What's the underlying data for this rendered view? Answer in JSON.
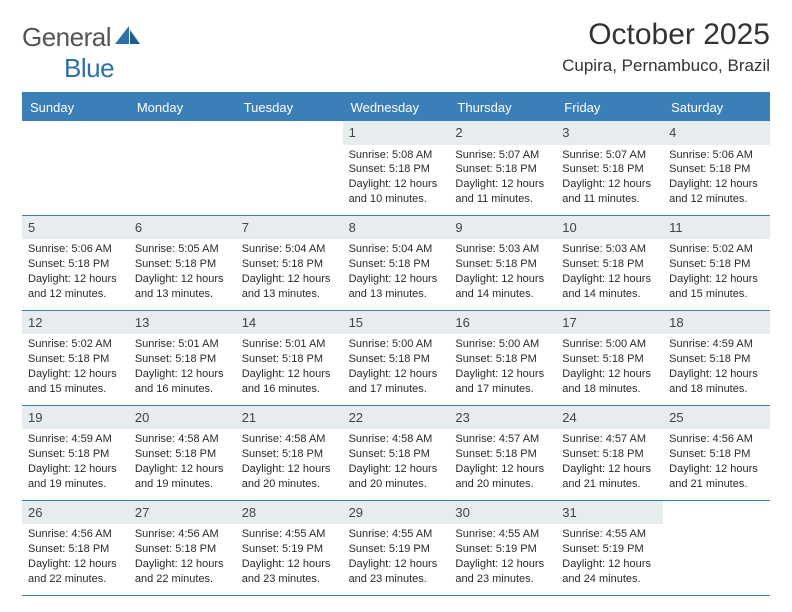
{
  "brand": {
    "name_part1": "General",
    "name_part2": "Blue"
  },
  "title": "October 2025",
  "location": "Cupira, Pernambuco, Brazil",
  "colors": {
    "header_bar": "#3b7fb8",
    "daynum_bg": "#e7ecef",
    "text": "#2a2a2a",
    "logo_gray": "#555",
    "logo_blue": "#2f6fa8"
  },
  "layout": {
    "cols": 7,
    "rows": 5,
    "font_family": "Arial"
  },
  "weekdays": [
    "Sunday",
    "Monday",
    "Tuesday",
    "Wednesday",
    "Thursday",
    "Friday",
    "Saturday"
  ],
  "weeks": [
    [
      {
        "day": "",
        "sunrise": "",
        "sunset": "",
        "daylight": ""
      },
      {
        "day": "",
        "sunrise": "",
        "sunset": "",
        "daylight": ""
      },
      {
        "day": "",
        "sunrise": "",
        "sunset": "",
        "daylight": ""
      },
      {
        "day": "1",
        "sunrise": "Sunrise: 5:08 AM",
        "sunset": "Sunset: 5:18 PM",
        "daylight": "Daylight: 12 hours and 10 minutes."
      },
      {
        "day": "2",
        "sunrise": "Sunrise: 5:07 AM",
        "sunset": "Sunset: 5:18 PM",
        "daylight": "Daylight: 12 hours and 11 minutes."
      },
      {
        "day": "3",
        "sunrise": "Sunrise: 5:07 AM",
        "sunset": "Sunset: 5:18 PM",
        "daylight": "Daylight: 12 hours and 11 minutes."
      },
      {
        "day": "4",
        "sunrise": "Sunrise: 5:06 AM",
        "sunset": "Sunset: 5:18 PM",
        "daylight": "Daylight: 12 hours and 12 minutes."
      }
    ],
    [
      {
        "day": "5",
        "sunrise": "Sunrise: 5:06 AM",
        "sunset": "Sunset: 5:18 PM",
        "daylight": "Daylight: 12 hours and 12 minutes."
      },
      {
        "day": "6",
        "sunrise": "Sunrise: 5:05 AM",
        "sunset": "Sunset: 5:18 PM",
        "daylight": "Daylight: 12 hours and 13 minutes."
      },
      {
        "day": "7",
        "sunrise": "Sunrise: 5:04 AM",
        "sunset": "Sunset: 5:18 PM",
        "daylight": "Daylight: 12 hours and 13 minutes."
      },
      {
        "day": "8",
        "sunrise": "Sunrise: 5:04 AM",
        "sunset": "Sunset: 5:18 PM",
        "daylight": "Daylight: 12 hours and 13 minutes."
      },
      {
        "day": "9",
        "sunrise": "Sunrise: 5:03 AM",
        "sunset": "Sunset: 5:18 PM",
        "daylight": "Daylight: 12 hours and 14 minutes."
      },
      {
        "day": "10",
        "sunrise": "Sunrise: 5:03 AM",
        "sunset": "Sunset: 5:18 PM",
        "daylight": "Daylight: 12 hours and 14 minutes."
      },
      {
        "day": "11",
        "sunrise": "Sunrise: 5:02 AM",
        "sunset": "Sunset: 5:18 PM",
        "daylight": "Daylight: 12 hours and 15 minutes."
      }
    ],
    [
      {
        "day": "12",
        "sunrise": "Sunrise: 5:02 AM",
        "sunset": "Sunset: 5:18 PM",
        "daylight": "Daylight: 12 hours and 15 minutes."
      },
      {
        "day": "13",
        "sunrise": "Sunrise: 5:01 AM",
        "sunset": "Sunset: 5:18 PM",
        "daylight": "Daylight: 12 hours and 16 minutes."
      },
      {
        "day": "14",
        "sunrise": "Sunrise: 5:01 AM",
        "sunset": "Sunset: 5:18 PM",
        "daylight": "Daylight: 12 hours and 16 minutes."
      },
      {
        "day": "15",
        "sunrise": "Sunrise: 5:00 AM",
        "sunset": "Sunset: 5:18 PM",
        "daylight": "Daylight: 12 hours and 17 minutes."
      },
      {
        "day": "16",
        "sunrise": "Sunrise: 5:00 AM",
        "sunset": "Sunset: 5:18 PM",
        "daylight": "Daylight: 12 hours and 17 minutes."
      },
      {
        "day": "17",
        "sunrise": "Sunrise: 5:00 AM",
        "sunset": "Sunset: 5:18 PM",
        "daylight": "Daylight: 12 hours and 18 minutes."
      },
      {
        "day": "18",
        "sunrise": "Sunrise: 4:59 AM",
        "sunset": "Sunset: 5:18 PM",
        "daylight": "Daylight: 12 hours and 18 minutes."
      }
    ],
    [
      {
        "day": "19",
        "sunrise": "Sunrise: 4:59 AM",
        "sunset": "Sunset: 5:18 PM",
        "daylight": "Daylight: 12 hours and 19 minutes."
      },
      {
        "day": "20",
        "sunrise": "Sunrise: 4:58 AM",
        "sunset": "Sunset: 5:18 PM",
        "daylight": "Daylight: 12 hours and 19 minutes."
      },
      {
        "day": "21",
        "sunrise": "Sunrise: 4:58 AM",
        "sunset": "Sunset: 5:18 PM",
        "daylight": "Daylight: 12 hours and 20 minutes."
      },
      {
        "day": "22",
        "sunrise": "Sunrise: 4:58 AM",
        "sunset": "Sunset: 5:18 PM",
        "daylight": "Daylight: 12 hours and 20 minutes."
      },
      {
        "day": "23",
        "sunrise": "Sunrise: 4:57 AM",
        "sunset": "Sunset: 5:18 PM",
        "daylight": "Daylight: 12 hours and 20 minutes."
      },
      {
        "day": "24",
        "sunrise": "Sunrise: 4:57 AM",
        "sunset": "Sunset: 5:18 PM",
        "daylight": "Daylight: 12 hours and 21 minutes."
      },
      {
        "day": "25",
        "sunrise": "Sunrise: 4:56 AM",
        "sunset": "Sunset: 5:18 PM",
        "daylight": "Daylight: 12 hours and 21 minutes."
      }
    ],
    [
      {
        "day": "26",
        "sunrise": "Sunrise: 4:56 AM",
        "sunset": "Sunset: 5:18 PM",
        "daylight": "Daylight: 12 hours and 22 minutes."
      },
      {
        "day": "27",
        "sunrise": "Sunrise: 4:56 AM",
        "sunset": "Sunset: 5:18 PM",
        "daylight": "Daylight: 12 hours and 22 minutes."
      },
      {
        "day": "28",
        "sunrise": "Sunrise: 4:55 AM",
        "sunset": "Sunset: 5:19 PM",
        "daylight": "Daylight: 12 hours and 23 minutes."
      },
      {
        "day": "29",
        "sunrise": "Sunrise: 4:55 AM",
        "sunset": "Sunset: 5:19 PM",
        "daylight": "Daylight: 12 hours and 23 minutes."
      },
      {
        "day": "30",
        "sunrise": "Sunrise: 4:55 AM",
        "sunset": "Sunset: 5:19 PM",
        "daylight": "Daylight: 12 hours and 23 minutes."
      },
      {
        "day": "31",
        "sunrise": "Sunrise: 4:55 AM",
        "sunset": "Sunset: 5:19 PM",
        "daylight": "Daylight: 12 hours and 24 minutes."
      },
      {
        "day": "",
        "sunrise": "",
        "sunset": "",
        "daylight": ""
      }
    ]
  ]
}
